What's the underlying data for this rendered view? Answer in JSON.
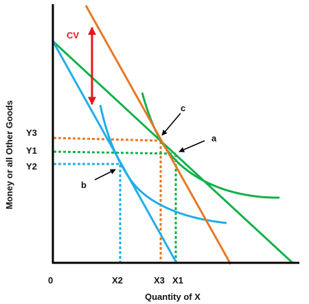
{
  "diagram": {
    "x_axis_title": "Quantity of X",
    "y_axis_title": "Money or all Other Goods",
    "origin_label": "0",
    "x_tick_labels": {
      "x2": "X2",
      "x3": "X3",
      "x1": "X1"
    },
    "y_tick_labels": {
      "y3": "Y3",
      "y1": "Y1",
      "y2": "Y2"
    },
    "point_labels": {
      "a": "a",
      "b": "b",
      "c": "c"
    },
    "cv_label": "CV",
    "colors": {
      "budget_original": "#12B04A",
      "budget_new": "#1FAEE8",
      "budget_compensated": "#E87722",
      "indifference_curve": "#12B04A",
      "indifference_curve_low": "#1FAEE8",
      "cv_arrow": "#E8171A",
      "axis": "#000000"
    }
  }
}
